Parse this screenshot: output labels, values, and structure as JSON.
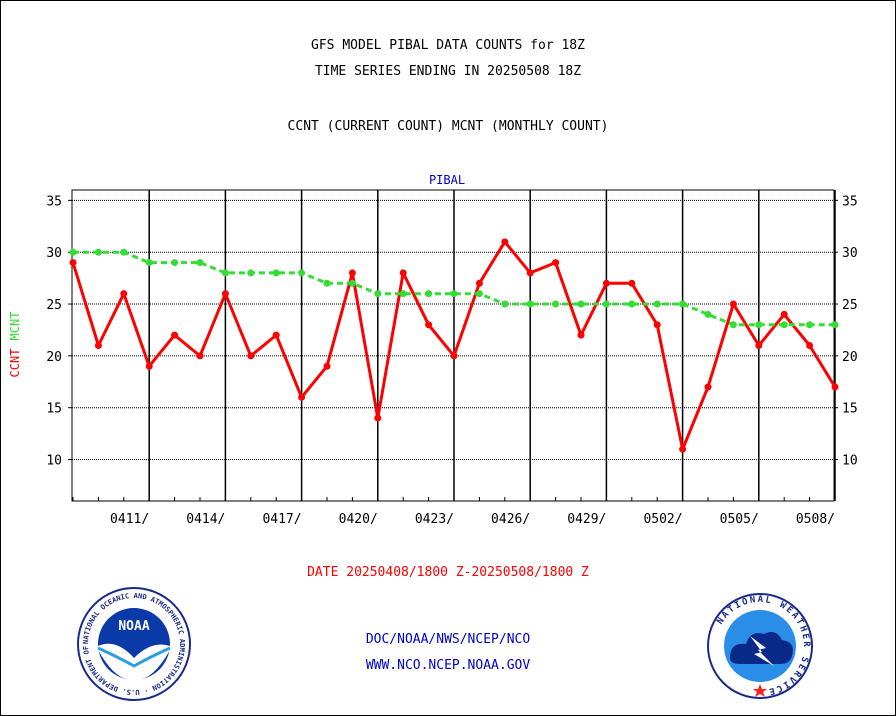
{
  "header": {
    "title_line1": "GFS MODEL PIBAL DATA COUNTS for 18Z",
    "title_line2": "TIME SERIES ENDING IN 20250508 18Z",
    "subtitle": "CCNT (CURRENT COUNT) MCNT (MONTHLY COUNT)"
  },
  "footer": {
    "date_range": "DATE 20250408/1800 Z-20250508/1800 Z",
    "link1": "DOC/NOAA/NWS/NCEP/NCO",
    "link2": "WWW.NCO.NCEP.NOAA.GOV"
  },
  "logos": {
    "left_text": "NOAA",
    "left_ring_text": "NATIONAL OCEANIC AND ATMOSPHERIC ADMINISTRATION · U.S. DEPARTMENT OF COMMERCE",
    "right_ring_text": "NATIONAL WEATHER SERVICE"
  },
  "colors": {
    "ccnt": "#ff0000",
    "mcnt": "#33dd33",
    "panel_title": "#0000cc"
  },
  "chart_data": {
    "type": "line",
    "title": "PIBAL",
    "ylabel_ccnt": "CCNT",
    "ylabel_mcnt": "MCNT",
    "ylim": [
      6,
      36
    ],
    "yticks": [
      10,
      15,
      20,
      25,
      30,
      35
    ],
    "x_start": "0408",
    "x_end": "0508",
    "xtick_labels": [
      "0411/",
      "0414/",
      "0417/",
      "0420/",
      "0423/",
      "0426/",
      "0429/",
      "0502/",
      "0505/",
      "0508/"
    ],
    "grid": true,
    "series": [
      {
        "name": "CCNT",
        "color": "#ff0000",
        "x": [
          "0408",
          "0409",
          "0410",
          "0411",
          "0412",
          "0413",
          "0414",
          "0415",
          "0416",
          "0417",
          "0418",
          "0419",
          "0420",
          "0421",
          "0422",
          "0423",
          "0424",
          "0425",
          "0426",
          "0427",
          "0428",
          "0429",
          "0430",
          "0501",
          "0502",
          "0503",
          "0504",
          "0505",
          "0506",
          "0507",
          "0508"
        ],
        "values": [
          29,
          21,
          26,
          19,
          22,
          20,
          26,
          20,
          22,
          16,
          19,
          28,
          14,
          28,
          23,
          20,
          27,
          31,
          28,
          29,
          22,
          27,
          27,
          23,
          11,
          17,
          25,
          21,
          24,
          21,
          17
        ]
      },
      {
        "name": "MCNT",
        "color": "#33dd33",
        "x": [
          "0408",
          "0409",
          "0410",
          "0411",
          "0412",
          "0413",
          "0414",
          "0415",
          "0416",
          "0417",
          "0418",
          "0419",
          "0420",
          "0421",
          "0422",
          "0423",
          "0424",
          "0425",
          "0426",
          "0427",
          "0428",
          "0429",
          "0430",
          "0501",
          "0502",
          "0503",
          "0504",
          "0505",
          "0506",
          "0507",
          "0508"
        ],
        "values": [
          30,
          30,
          30,
          29,
          29,
          29,
          28,
          28,
          28,
          28,
          27,
          27,
          26,
          26,
          26,
          26,
          26,
          25,
          25,
          25,
          25,
          25,
          25,
          25,
          25,
          24,
          23,
          23,
          23,
          23,
          23
        ]
      }
    ]
  }
}
